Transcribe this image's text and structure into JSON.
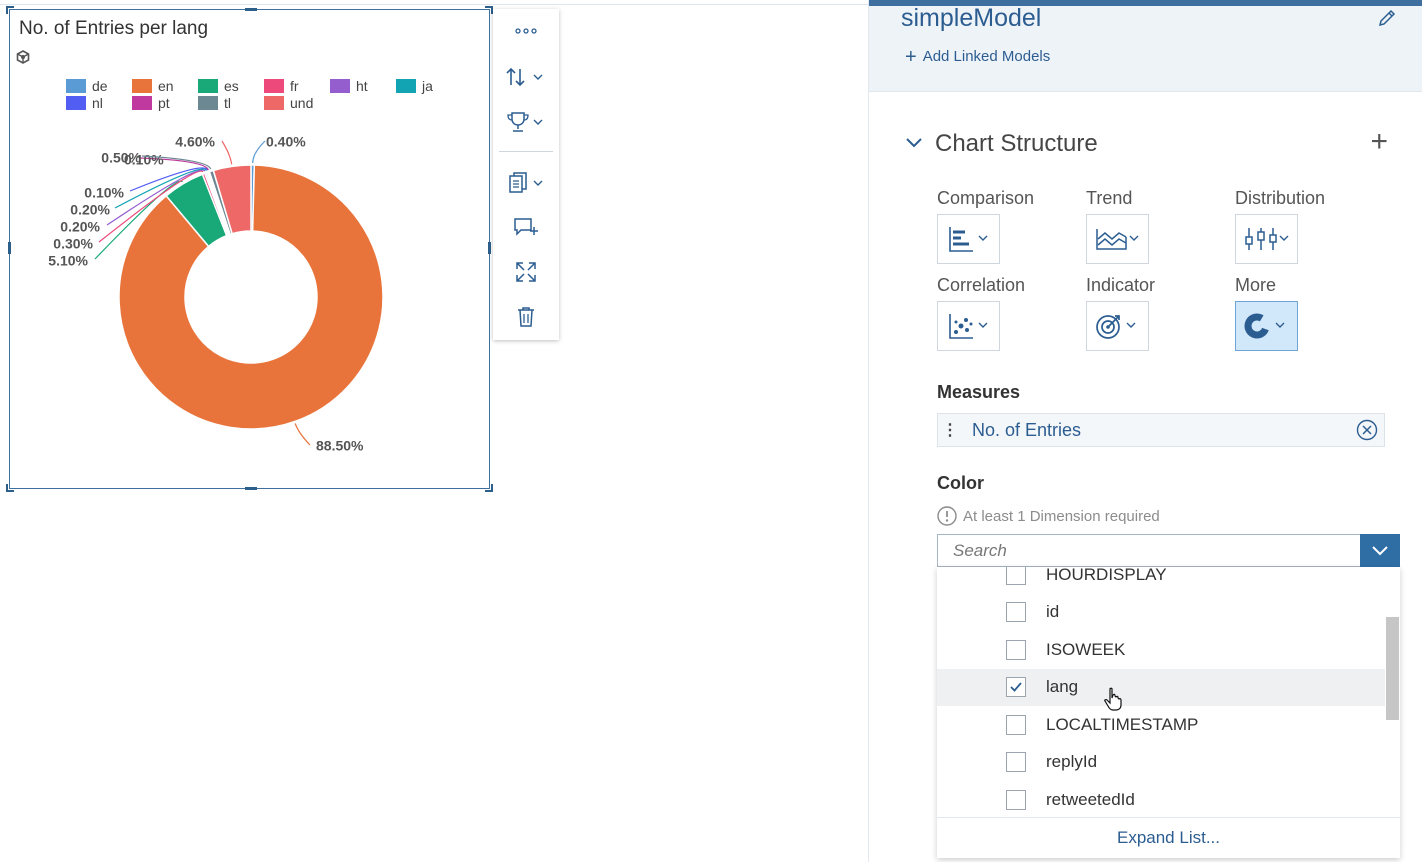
{
  "chart": {
    "title": "No. of Entries per lang",
    "legend": [
      {
        "label": "de",
        "color": "#5b9bd5"
      },
      {
        "label": "en",
        "color": "#e8743b"
      },
      {
        "label": "es",
        "color": "#19a979"
      },
      {
        "label": "fr",
        "color": "#ed4a7b"
      },
      {
        "label": "ht",
        "color": "#945ecf"
      },
      {
        "label": "ja",
        "color": "#13a4b4"
      },
      {
        "label": "nl",
        "color": "#525df4"
      },
      {
        "label": "pt",
        "color": "#bf399e"
      },
      {
        "label": "tl",
        "color": "#6c8893"
      },
      {
        "label": "und",
        "color": "#ee6868"
      }
    ]
  },
  "chart_data": {
    "type": "pie",
    "variant": "donut",
    "title": "No. of Entries per lang",
    "categories": [
      "de",
      "en",
      "es",
      "fr",
      "ht",
      "ja",
      "nl",
      "pt",
      "tl",
      "und"
    ],
    "values": [
      0.4,
      88.5,
      5.1,
      0.3,
      0.2,
      0.2,
      0.1,
      0.1,
      0.5,
      4.6
    ],
    "data_labels": [
      "0.40%",
      "88.50%",
      "5.10%",
      "0.30%",
      "0.20%",
      "0.20%",
      "0.10%",
      "0.10%",
      "0.50%",
      "4.60%"
    ],
    "legend_position": "top"
  },
  "toolbar": {
    "items": [
      "more-actions",
      "sort",
      "rank",
      "copy",
      "add-comment",
      "fullscreen",
      "delete"
    ]
  },
  "panel": {
    "model_title": "simpleModel",
    "add_linked": "Add Linked Models",
    "section_title": "Chart Structure",
    "chart_types": [
      {
        "label": "Comparison",
        "icon": "bar-chart-icon"
      },
      {
        "label": "Trend",
        "icon": "area-chart-icon"
      },
      {
        "label": "Distribution",
        "icon": "box-plot-icon"
      },
      {
        "label": "Correlation",
        "icon": "scatter-plot-icon"
      },
      {
        "label": "Indicator",
        "icon": "target-icon"
      },
      {
        "label": "More",
        "icon": "donut-chart-icon",
        "selected": true
      }
    ],
    "measures_label": "Measures",
    "measure_value": "No. of Entries",
    "color_label": "Color",
    "hint": "At least 1 Dimension required",
    "search_placeholder": "Search",
    "dimensions": [
      {
        "label": "HOURDISPLAY",
        "checked": false
      },
      {
        "label": "id",
        "checked": false
      },
      {
        "label": "ISOWEEK",
        "checked": false
      },
      {
        "label": "lang",
        "checked": true
      },
      {
        "label": "LOCALTIMESTAMP",
        "checked": false
      },
      {
        "label": "replyId",
        "checked": false
      },
      {
        "label": "retweetedId",
        "checked": false
      }
    ],
    "expand_list": "Expand List..."
  }
}
